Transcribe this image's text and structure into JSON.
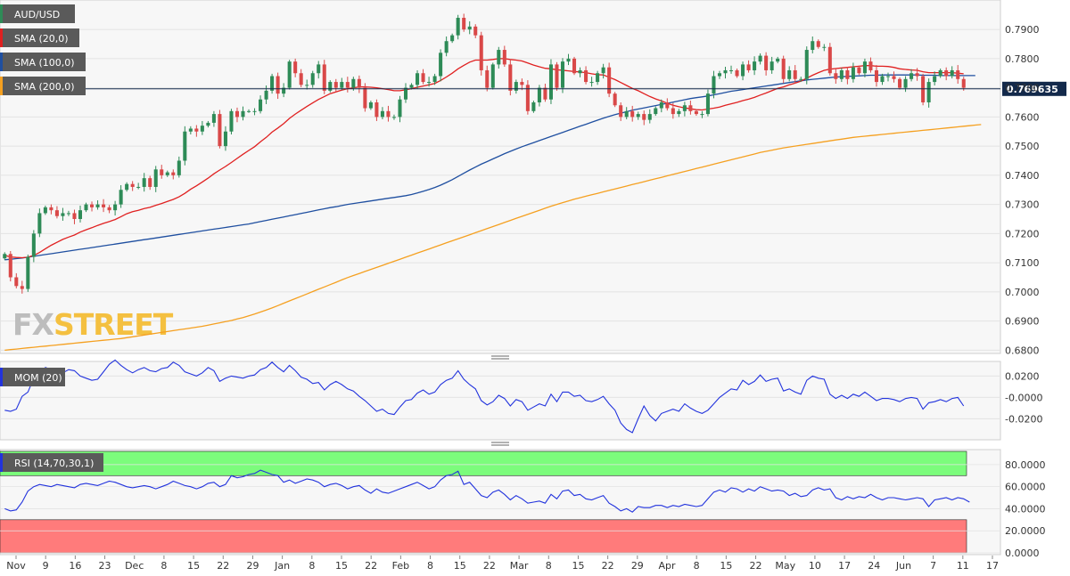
{
  "symbol": "AUD/USD",
  "logo_text": {
    "part1": "FX",
    "part2": "STREET"
  },
  "colors": {
    "bull": "#2e8b57",
    "bear": "#d94848",
    "sma20": "#e02020",
    "sma100": "#1f4fa0",
    "sma200": "#f5a020",
    "mom": "#2233dd",
    "rsi": "#2233dd",
    "overbought": "#7cfc7c",
    "oversold": "#ff7b7b",
    "price_line": "#13294b"
  },
  "chart_data": [
    {
      "type": "candlestick",
      "title": "AUD/USD",
      "legend": [
        {
          "name": "SMA (20,0)",
          "color": "#e02020"
        },
        {
          "name": "SMA (100,0)",
          "color": "#1f4fa0"
        },
        {
          "name": "SMA (200,0)",
          "color": "#f5a020"
        }
      ],
      "current_price_label": "0.769635",
      "current_price": 0.769635,
      "ylim": [
        0.6795,
        0.7995
      ],
      "yticks": [
        "0.7900",
        "0.7800",
        "0.7700",
        "0.7600",
        "0.7500",
        "0.7400",
        "0.7300",
        "0.7200",
        "0.7100",
        "0.7000",
        "0.6900",
        "0.6800"
      ],
      "xticks": [
        "Nov",
        "9",
        "16",
        "23",
        "Dec",
        "8",
        "15",
        "22",
        "29",
        "Jan",
        "8",
        "15",
        "22",
        "Feb",
        "8",
        "15",
        "22",
        "Mar",
        "8",
        "15",
        "22",
        "29",
        "Apr",
        "8",
        "15",
        "22",
        "May",
        "10",
        "17",
        "24",
        "Jun",
        "7",
        "11",
        "17"
      ],
      "close": [
        0.713,
        0.705,
        0.702,
        0.701,
        0.712,
        0.72,
        0.727,
        0.729,
        0.728,
        0.726,
        0.727,
        0.727,
        0.725,
        0.728,
        0.73,
        0.729,
        0.73,
        0.729,
        0.728,
        0.73,
        0.735,
        0.737,
        0.736,
        0.736,
        0.739,
        0.736,
        0.742,
        0.74,
        0.741,
        0.74,
        0.745,
        0.755,
        0.756,
        0.755,
        0.757,
        0.758,
        0.761,
        0.75,
        0.755,
        0.762,
        0.76,
        0.762,
        0.762,
        0.762,
        0.766,
        0.769,
        0.774,
        0.768,
        0.77,
        0.779,
        0.775,
        0.771,
        0.771,
        0.775,
        0.778,
        0.769,
        0.772,
        0.77,
        0.772,
        0.77,
        0.773,
        0.77,
        0.763,
        0.765,
        0.76,
        0.762,
        0.76,
        0.76,
        0.766,
        0.77,
        0.771,
        0.775,
        0.772,
        0.772,
        0.774,
        0.782,
        0.786,
        0.788,
        0.794,
        0.79,
        0.791,
        0.788,
        0.776,
        0.77,
        0.778,
        0.783,
        0.778,
        0.769,
        0.772,
        0.771,
        0.762,
        0.765,
        0.77,
        0.766,
        0.778,
        0.77,
        0.779,
        0.78,
        0.775,
        0.776,
        0.772,
        0.772,
        0.775,
        0.777,
        0.768,
        0.764,
        0.76,
        0.762,
        0.76,
        0.761,
        0.759,
        0.761,
        0.763,
        0.765,
        0.763,
        0.761,
        0.762,
        0.764,
        0.762,
        0.761,
        0.761,
        0.768,
        0.774,
        0.775,
        0.776,
        0.776,
        0.774,
        0.778,
        0.776,
        0.779,
        0.781,
        0.776,
        0.779,
        0.78,
        0.773,
        0.776,
        0.773,
        0.773,
        0.783,
        0.786,
        0.784,
        0.784,
        0.775,
        0.773,
        0.776,
        0.773,
        0.777,
        0.775,
        0.779,
        0.776,
        0.772,
        0.774,
        0.774,
        0.773,
        0.77,
        0.773,
        0.775,
        0.774,
        0.765,
        0.772,
        0.774,
        0.776,
        0.774,
        0.776,
        0.773,
        0.77
      ],
      "sma20": [
        0.7125,
        0.712,
        0.7118,
        0.7117,
        0.7119,
        0.7125,
        0.7135,
        0.7148,
        0.716,
        0.717,
        0.718,
        0.7188,
        0.7195,
        0.7205,
        0.7213,
        0.722,
        0.7228,
        0.7235,
        0.7241,
        0.7248,
        0.7258,
        0.7268,
        0.7275,
        0.728,
        0.7286,
        0.729,
        0.7297,
        0.7303,
        0.731,
        0.7317,
        0.7326,
        0.7338,
        0.7352,
        0.7364,
        0.7377,
        0.739,
        0.7405,
        0.7418,
        0.743,
        0.7444,
        0.7458,
        0.7472,
        0.7485,
        0.7498,
        0.7515,
        0.753,
        0.7548,
        0.7562,
        0.7577,
        0.7595,
        0.761,
        0.7623,
        0.7636,
        0.7648,
        0.766,
        0.767,
        0.768,
        0.7686,
        0.7692,
        0.7697,
        0.77,
        0.7703,
        0.7703,
        0.7702,
        0.77,
        0.7697,
        0.7694,
        0.769,
        0.769,
        0.7693,
        0.7697,
        0.7702,
        0.7706,
        0.771,
        0.7715,
        0.7725,
        0.7737,
        0.775,
        0.7765,
        0.7777,
        0.7788,
        0.7795,
        0.7795,
        0.7795,
        0.7797,
        0.78,
        0.78,
        0.7797,
        0.7795,
        0.7792,
        0.7785,
        0.7778,
        0.7772,
        0.7767,
        0.7765,
        0.7762,
        0.776,
        0.7758,
        0.7756,
        0.7754,
        0.7752,
        0.7748,
        0.7745,
        0.7744,
        0.7736,
        0.7728,
        0.7718,
        0.7708,
        0.7698,
        0.769,
        0.768,
        0.767,
        0.7662,
        0.7655,
        0.7647,
        0.764,
        0.7635,
        0.7631,
        0.7628,
        0.7625,
        0.7624,
        0.7627,
        0.763,
        0.7634,
        0.764,
        0.7645,
        0.765,
        0.7656,
        0.7661,
        0.7667,
        0.7675,
        0.7682,
        0.769,
        0.7698,
        0.7703,
        0.771,
        0.7716,
        0.7723,
        0.7733,
        0.7743,
        0.7752,
        0.776,
        0.7764,
        0.7766,
        0.7768,
        0.777,
        0.7772,
        0.7774,
        0.7776,
        0.7776,
        0.7774,
        0.7774,
        0.7773,
        0.777,
        0.7765,
        0.7763,
        0.7761,
        0.776,
        0.7755,
        0.7752,
        0.7752,
        0.7752,
        0.7752,
        0.7752,
        0.775,
        0.7748
      ],
      "sma100": [
        0.711,
        0.7112,
        0.7114,
        0.7116,
        0.7119,
        0.7122,
        0.7125,
        0.7128,
        0.7131,
        0.7134,
        0.7137,
        0.714,
        0.7143,
        0.7146,
        0.7149,
        0.7152,
        0.7155,
        0.7158,
        0.7161,
        0.7164,
        0.7167,
        0.717,
        0.7173,
        0.7176,
        0.7179,
        0.7182,
        0.7185,
        0.7188,
        0.7191,
        0.7194,
        0.7197,
        0.72,
        0.7203,
        0.7206,
        0.7209,
        0.7212,
        0.7215,
        0.7218,
        0.7221,
        0.7224,
        0.7227,
        0.723,
        0.7233,
        0.7237,
        0.7241,
        0.7245,
        0.7249,
        0.7253,
        0.7257,
        0.7261,
        0.7265,
        0.7269,
        0.7273,
        0.7277,
        0.7281,
        0.7285,
        0.7289,
        0.7292,
        0.7296,
        0.73,
        0.7303,
        0.7306,
        0.7309,
        0.7312,
        0.7315,
        0.7318,
        0.7321,
        0.7324,
        0.7327,
        0.733,
        0.7334,
        0.7339,
        0.7345,
        0.7351,
        0.7358,
        0.7366,
        0.7375,
        0.7385,
        0.7396,
        0.7407,
        0.7418,
        0.7428,
        0.7438,
        0.7447,
        0.7456,
        0.7465,
        0.7474,
        0.7482,
        0.749,
        0.7498,
        0.7505,
        0.7512,
        0.7519,
        0.7526,
        0.7533,
        0.754,
        0.7547,
        0.7554,
        0.7561,
        0.7568,
        0.7575,
        0.7582,
        0.7589,
        0.7596,
        0.7602,
        0.7608,
        0.7613,
        0.7618,
        0.7623,
        0.7627,
        0.7631,
        0.7635,
        0.7639,
        0.7643,
        0.7647,
        0.7651,
        0.7655,
        0.7659,
        0.7663,
        0.7666,
        0.7669,
        0.7672,
        0.7676,
        0.768,
        0.7684,
        0.7688,
        0.7691,
        0.7694,
        0.7697,
        0.77,
        0.7703,
        0.7706,
        0.7709,
        0.7712,
        0.7715,
        0.7718,
        0.7721,
        0.7724,
        0.7727,
        0.7729,
        0.7731,
        0.7733,
        0.7735,
        0.7737,
        0.7738,
        0.7739,
        0.774,
        0.7741,
        0.7742,
        0.7743,
        0.7743,
        0.7744,
        0.7744,
        0.7744,
        0.7744,
        0.7744,
        0.7744,
        0.7744,
        0.7743,
        0.7743,
        0.7743,
        0.7742,
        0.7742,
        0.7742,
        0.7742,
        0.7742,
        0.7742,
        0.7742
      ],
      "sma200": [
        0.68,
        0.6802,
        0.6804,
        0.6806,
        0.6808,
        0.681,
        0.6812,
        0.6814,
        0.6816,
        0.6818,
        0.682,
        0.6822,
        0.6824,
        0.6826,
        0.6828,
        0.683,
        0.6832,
        0.6834,
        0.6836,
        0.6838,
        0.684,
        0.6843,
        0.6846,
        0.6849,
        0.6852,
        0.6855,
        0.6858,
        0.6861,
        0.6864,
        0.6867,
        0.687,
        0.6873,
        0.6876,
        0.6879,
        0.6882,
        0.6886,
        0.689,
        0.6894,
        0.6898,
        0.6902,
        0.6907,
        0.6912,
        0.6918,
        0.6924,
        0.6931,
        0.6938,
        0.6945,
        0.6953,
        0.6961,
        0.6969,
        0.6977,
        0.6985,
        0.6993,
        0.7001,
        0.7009,
        0.7017,
        0.7025,
        0.7033,
        0.7041,
        0.7049,
        0.7056,
        0.7063,
        0.707,
        0.7077,
        0.7084,
        0.7091,
        0.7098,
        0.7105,
        0.7112,
        0.7119,
        0.7126,
        0.7133,
        0.714,
        0.7147,
        0.7154,
        0.7161,
        0.7168,
        0.7175,
        0.7182,
        0.7189,
        0.7196,
        0.7203,
        0.721,
        0.7217,
        0.7224,
        0.7231,
        0.7238,
        0.7245,
        0.7252,
        0.7259,
        0.7266,
        0.7273,
        0.728,
        0.7287,
        0.7294,
        0.73,
        0.7306,
        0.7312,
        0.7318,
        0.7323,
        0.7328,
        0.7333,
        0.7338,
        0.7343,
        0.7348,
        0.7353,
        0.7358,
        0.7363,
        0.7368,
        0.7373,
        0.7378,
        0.7383,
        0.7388,
        0.7393,
        0.7398,
        0.7403,
        0.7408,
        0.7413,
        0.7418,
        0.7423,
        0.7428,
        0.7433,
        0.7438,
        0.7443,
        0.7448,
        0.7453,
        0.7458,
        0.7463,
        0.7468,
        0.7473,
        0.7478,
        0.7482,
        0.7486,
        0.749,
        0.7494,
        0.7497,
        0.75,
        0.7503,
        0.7506,
        0.7509,
        0.7512,
        0.7515,
        0.7518,
        0.7521,
        0.7524,
        0.7527,
        0.753,
        0.7532,
        0.7534,
        0.7536,
        0.7538,
        0.754,
        0.7542,
        0.7544,
        0.7546,
        0.7548,
        0.755,
        0.7552,
        0.7554,
        0.7556,
        0.7558,
        0.756,
        0.7562,
        0.7564,
        0.7566,
        0.7568,
        0.757,
        0.7572,
        0.7574
      ]
    },
    {
      "type": "line",
      "title": "MOM (20)",
      "ylim": [
        -0.038,
        0.032
      ],
      "yticks": [
        "0.0200",
        "-0.0000",
        "-0.0200"
      ],
      "values": [
        -0.012,
        -0.013,
        -0.011,
        0.001,
        0.005,
        0.018,
        0.022,
        0.028,
        0.026,
        0.024,
        0.023,
        0.026,
        0.025,
        0.02,
        0.018,
        0.016,
        0.017,
        0.024,
        0.031,
        0.035,
        0.03,
        0.026,
        0.023,
        0.026,
        0.028,
        0.025,
        0.024,
        0.027,
        0.028,
        0.033,
        0.03,
        0.024,
        0.022,
        0.02,
        0.023,
        0.028,
        0.025,
        0.015,
        0.018,
        0.02,
        0.019,
        0.018,
        0.02,
        0.021,
        0.026,
        0.028,
        0.033,
        0.028,
        0.024,
        0.03,
        0.025,
        0.019,
        0.017,
        0.013,
        0.014,
        0.007,
        0.012,
        0.015,
        0.012,
        0.008,
        0.006,
        0.001,
        -0.003,
        -0.008,
        -0.013,
        -0.011,
        -0.015,
        -0.016,
        -0.009,
        -0.003,
        -0.002,
        0.004,
        0.007,
        0.003,
        0.005,
        0.012,
        0.016,
        0.018,
        0.025,
        0.017,
        0.012,
        0.008,
        -0.003,
        -0.007,
        -0.004,
        0.002,
        -0.001,
        -0.008,
        -0.002,
        -0.004,
        -0.012,
        -0.009,
        -0.006,
        -0.008,
        0.003,
        -0.004,
        0.005,
        0.005,
        0.001,
        0.002,
        -0.003,
        -0.004,
        -0.002,
        0.001,
        -0.006,
        -0.012,
        -0.024,
        -0.03,
        -0.033,
        -0.02,
        -0.008,
        -0.017,
        -0.022,
        -0.015,
        -0.013,
        -0.011,
        -0.013,
        -0.006,
        -0.01,
        -0.013,
        -0.015,
        -0.012,
        -0.006,
        0.0,
        0.004,
        0.008,
        0.007,
        0.016,
        0.012,
        0.015,
        0.021,
        0.015,
        0.017,
        0.018,
        0.006,
        0.008,
        0.005,
        0.003,
        0.016,
        0.02,
        0.018,
        0.017,
        0.003,
        -0.001,
        0.002,
        -0.001,
        0.003,
        0.001,
        0.005,
        0.001,
        -0.003,
        -0.001,
        -0.001,
        -0.002,
        -0.004,
        -0.001,
        0.0,
        -0.001,
        -0.011,
        -0.005,
        -0.004,
        -0.002,
        -0.004,
        -0.001,
        0.0,
        -0.008
      ]
    },
    {
      "type": "line",
      "title": "RSI (14,70,30,1)",
      "ylim": [
        0,
        92
      ],
      "yticks": [
        "80.0000",
        "60.0000",
        "40.0000",
        "20.0000",
        "0.0000"
      ],
      "overbought": 70,
      "oversold": 30,
      "values": [
        40,
        38,
        39,
        46,
        56,
        60,
        62,
        61,
        60,
        62,
        61,
        60,
        59,
        62,
        63,
        62,
        61,
        63,
        65,
        64,
        62,
        60,
        59,
        60,
        61,
        60,
        58,
        60,
        62,
        65,
        63,
        61,
        60,
        58,
        60,
        63,
        64,
        60,
        62,
        70,
        68,
        69,
        71,
        72,
        75,
        73,
        71,
        70,
        64,
        66,
        63,
        65,
        67,
        66,
        64,
        60,
        62,
        63,
        61,
        58,
        60,
        61,
        57,
        54,
        58,
        55,
        54,
        56,
        58,
        60,
        62,
        64,
        61,
        58,
        60,
        66,
        70,
        71,
        74,
        62,
        64,
        58,
        52,
        50,
        55,
        57,
        53,
        48,
        52,
        49,
        45,
        46,
        47,
        45,
        53,
        49,
        56,
        57,
        52,
        53,
        49,
        48,
        50,
        52,
        45,
        42,
        38,
        40,
        37,
        42,
        41,
        41,
        43,
        43,
        41,
        43,
        42,
        44,
        43,
        42,
        43,
        49,
        55,
        57,
        55,
        59,
        58,
        55,
        58,
        56,
        60,
        58,
        56,
        57,
        56,
        52,
        54,
        51,
        52,
        57,
        59,
        57,
        58,
        50,
        48,
        51,
        49,
        51,
        50,
        53,
        50,
        48,
        50,
        50,
        49,
        48,
        49,
        50,
        49,
        42,
        48,
        49,
        50,
        48,
        50,
        49,
        46
      ]
    }
  ]
}
